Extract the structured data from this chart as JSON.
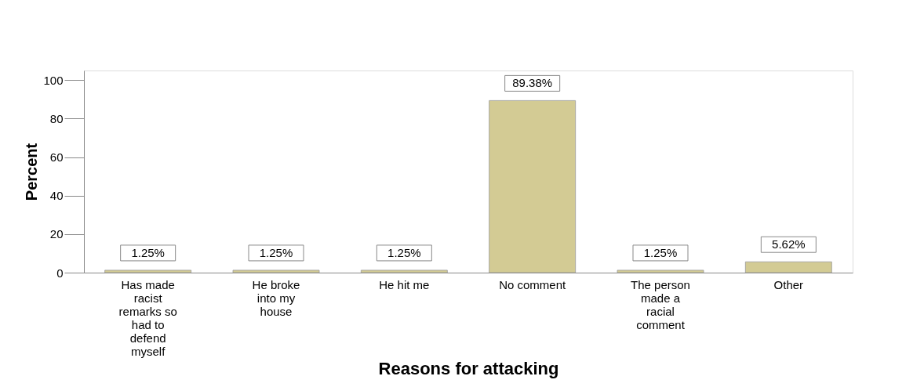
{
  "chart_data": {
    "type": "bar",
    "xlabel": "Reasons for attacking",
    "ylabel": "Percent",
    "categories": [
      "Has made racist remarks so had to defend myself",
      "He broke into my house",
      "He hit me",
      "No comment",
      "The person made a racial comment",
      "Other"
    ],
    "values": [
      1.25,
      1.25,
      1.25,
      89.38,
      1.25,
      5.62
    ],
    "value_labels": [
      "1.25%",
      "1.25%",
      "1.25%",
      "89.38%",
      "1.25%",
      "5.62%"
    ],
    "color": "#d3cb94",
    "ylim": [
      0,
      105
    ],
    "yticks": [
      0,
      20,
      40,
      60,
      80,
      100
    ],
    "grid": false
  }
}
